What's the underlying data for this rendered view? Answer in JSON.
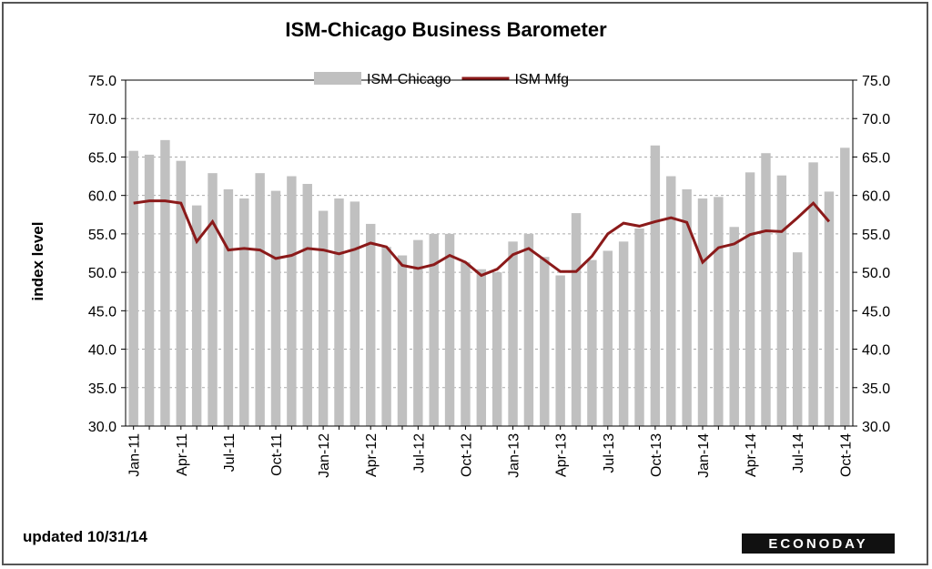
{
  "chart_data": {
    "type": "bar",
    "title": "ISM-Chicago Business  Barometer",
    "y_label": "index level",
    "footnote": "updated 10/31/14",
    "source_logo": "ECONODAY",
    "categories": [
      "Jan-11",
      null,
      null,
      "Apr-11",
      null,
      null,
      "Jul-11",
      null,
      null,
      "Oct-11",
      null,
      null,
      "Jan-12",
      null,
      null,
      "Apr-12",
      null,
      null,
      "Jul-12",
      null,
      null,
      "Oct-12",
      null,
      null,
      "Jan-13",
      null,
      null,
      "Apr-13",
      null,
      null,
      "Jul-13",
      null,
      null,
      "Oct-13",
      null,
      null,
      "Jan-14",
      null,
      null,
      "Apr-14",
      null,
      null,
      "Jul-14",
      null,
      null,
      "Oct-14"
    ],
    "series": [
      {
        "name": "ISM-Chicago",
        "type": "bar",
        "color": "#c0c0c0",
        "values": [
          65.8,
          65.3,
          67.2,
          64.5,
          58.7,
          62.9,
          60.8,
          59.6,
          62.9,
          60.6,
          62.5,
          61.5,
          58.0,
          59.6,
          59.2,
          56.3,
          53.3,
          52.2,
          54.2,
          55.0,
          55.0,
          51.3,
          50.4,
          50.0,
          54.0,
          55.0,
          52.0,
          49.6,
          57.7,
          51.6,
          52.8,
          54.0,
          55.7,
          66.5,
          62.5,
          60.8,
          59.6,
          59.8,
          55.9,
          63.0,
          65.5,
          62.6,
          52.6,
          64.3,
          60.5,
          66.2
        ]
      },
      {
        "name": "ISM Mfg",
        "type": "line",
        "axis": "y2",
        "color": "#8b1a1a",
        "values": [
          59.0,
          59.3,
          59.3,
          59.0,
          54.0,
          56.6,
          52.9,
          53.1,
          52.9,
          51.8,
          52.2,
          53.1,
          52.9,
          52.4,
          53.0,
          53.8,
          53.3,
          50.9,
          50.5,
          51.0,
          52.2,
          51.3,
          49.6,
          50.4,
          52.3,
          53.1,
          51.6,
          50.1,
          50.1,
          52.1,
          55.0,
          56.4,
          56.0,
          56.6,
          57.1,
          56.5,
          51.3,
          53.2,
          53.7,
          54.9,
          55.4,
          55.3,
          57.1,
          59.0,
          56.6,
          null
        ]
      }
    ],
    "ylim": [
      30,
      75
    ],
    "yticks": [
      {
        "value": 30,
        "label": "30.0"
      },
      {
        "value": 35,
        "label": "35.0"
      },
      {
        "value": 40,
        "label": "40.0"
      },
      {
        "value": 45,
        "label": "45.0"
      },
      {
        "value": 50,
        "label": "50.0"
      },
      {
        "value": 55,
        "label": "55.0"
      },
      {
        "value": 60,
        "label": "60.0"
      },
      {
        "value": 65,
        "label": "65.0"
      },
      {
        "value": 70,
        "label": "70.0"
      },
      {
        "value": 75,
        "label": "75.0"
      }
    ],
    "y2lim": [
      30,
      75
    ],
    "y2ticks": [
      {
        "value": 30,
        "label": "30.0"
      },
      {
        "value": 35,
        "label": "35.0"
      },
      {
        "value": 40,
        "label": "40.0"
      },
      {
        "value": 45,
        "label": "45.0"
      },
      {
        "value": 50,
        "label": "50.0"
      },
      {
        "value": 55,
        "label": "55.0"
      },
      {
        "value": 60,
        "label": "60.0"
      },
      {
        "value": 65,
        "label": "65.0"
      },
      {
        "value": 70,
        "label": "70.0"
      },
      {
        "value": 75,
        "label": "75.0"
      }
    ],
    "grid": true,
    "legend": "top"
  }
}
